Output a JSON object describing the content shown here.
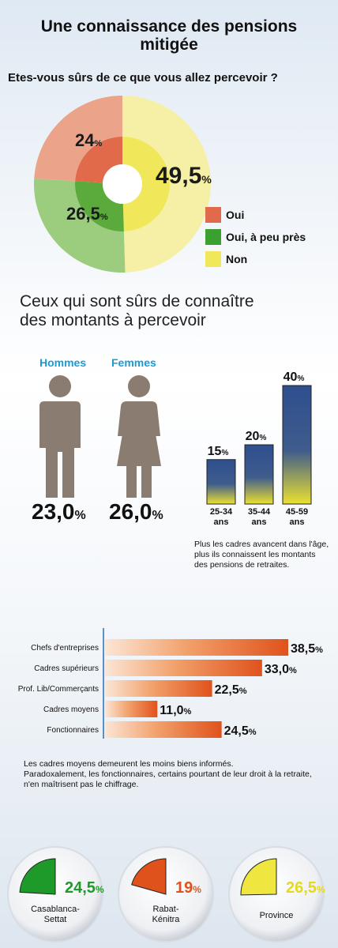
{
  "title_line1": "Une connaissance des pensions",
  "title_line2": "mitigée",
  "donut": {
    "question": "Etes-vous sûrs de ce que vous allez percevoir ?",
    "slices": [
      {
        "label": "Oui",
        "value": 24,
        "display": "24",
        "color": "#e06a4a",
        "outer_color": "#eba48a"
      },
      {
        "label": "Oui, à peu près",
        "value": 26.5,
        "display": "26,5",
        "color": "#5aaa3c",
        "outer_color": "#9ccc7e"
      },
      {
        "label": "Non",
        "value": 49.5,
        "display": "49,5",
        "color": "#f0e85a",
        "outer_color": "#f6f0a6"
      }
    ],
    "pct_symbol": "%"
  },
  "section2": {
    "heading_line1": "Ceux qui sont sûrs de connaître",
    "heading_line2": "des montants à percevoir",
    "men_label": "Hommes",
    "women_label": "Femmes",
    "men_value": "23,0",
    "women_value": "26,0",
    "pct_symbol": "%",
    "person_color": "#8a7c70"
  },
  "chart_data": [
    {
      "type": "pie",
      "title": "Etes-vous sûrs de ce que vous allez percevoir ?",
      "categories": [
        "Oui",
        "Oui, à peu près",
        "Non"
      ],
      "values": [
        24,
        26.5,
        49.5
      ]
    },
    {
      "type": "bar",
      "categories": [
        "Hommes",
        "Femmes"
      ],
      "values": [
        23.0,
        26.0
      ]
    },
    {
      "type": "bar",
      "categories": [
        "25-34 ans",
        "35-44 ans",
        "45-59 ans"
      ],
      "values": [
        15,
        20,
        40
      ]
    },
    {
      "type": "bar",
      "categories": [
        "Chefs d'entreprises",
        "Cadres supérieurs",
        "Prof. Lib/Commerçants",
        "Cadres moyens",
        "Fonctionnaires"
      ],
      "values": [
        38.5,
        33.0,
        22.5,
        11.0,
        24.5
      ]
    },
    {
      "type": "pie",
      "categories": [
        "Casablanca-Settat",
        "Rabat-Kénitra",
        "Province"
      ],
      "values": [
        24.5,
        19,
        26.5
      ]
    }
  ],
  "age_bars": {
    "items": [
      {
        "label_top": "25-34",
        "label_bottom": "ans",
        "value": 15,
        "display": "15"
      },
      {
        "label_top": "35-44",
        "label_bottom": "ans",
        "value": 20,
        "display": "20"
      },
      {
        "label_top": "45-59",
        "label_bottom": "ans",
        "value": 40,
        "display": "40"
      }
    ],
    "pct_symbol": "%",
    "note_line1": "Plus les cadres avancent dans l'âge,",
    "note_line2": "plus ils connaissent les  montants",
    "note_line3": "des pensions de retraites."
  },
  "profession_bars": {
    "items": [
      {
        "label": "Chefs d'entreprises",
        "value": 38.5,
        "display": "38,5"
      },
      {
        "label": "Cadres supérieurs",
        "value": 33.0,
        "display": "33,0"
      },
      {
        "label": "Prof. Lib/Commerçants",
        "value": 22.5,
        "display": "22,5"
      },
      {
        "label": "Cadres moyens",
        "value": 11.0,
        "display": "11,0"
      },
      {
        "label": "Fonctionnaires",
        "value": 24.5,
        "display": "24,5"
      }
    ],
    "pct_symbol": "%",
    "note_line1": "Les cadres moyens demeurent les moins biens informés.",
    "note_line2": "Paradoxalement, les fonctionnaires, certains pourtant  de leur droit à la retraite,",
    "note_line3": "n'en maîtrisent pas le chiffrage."
  },
  "regions": {
    "items": [
      {
        "label_line1": "Casablanca-",
        "label_line2": "Settat",
        "value": 24.5,
        "display": "24,5",
        "color": "#1e9a2a",
        "text_color": "#1e9a2a"
      },
      {
        "label_line1": "Rabat-",
        "label_line2": "Kénitra",
        "value": 19,
        "display": "19",
        "color": "#e0521c",
        "text_color": "#e0521c"
      },
      {
        "label_line1": "Province",
        "label_line2": "",
        "value": 26.5,
        "display": "26,5",
        "color": "#f0e640",
        "text_color": "#e6d820"
      }
    ],
    "pct_symbol": "%"
  }
}
